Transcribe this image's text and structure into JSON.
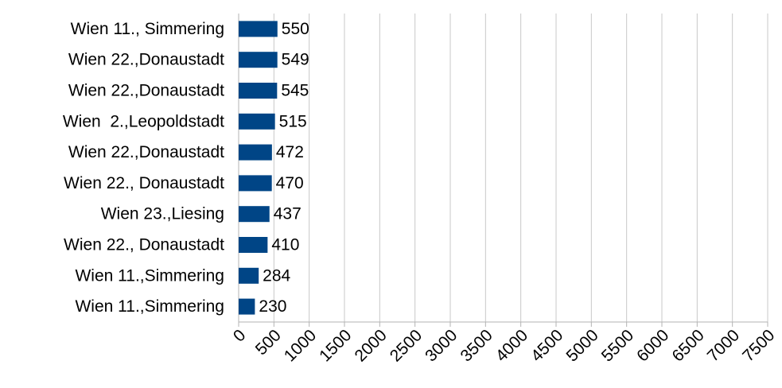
{
  "chart_data": {
    "type": "bar",
    "orientation": "horizontal",
    "categories": [
      "Wien 11., Simmering",
      "Wien 22.,Donaustadt",
      "Wien 22.,Donaustadt",
      "Wien  2.,Leopoldstadt",
      "Wien 22.,Donaustadt",
      "Wien 22., Donaustadt",
      "Wien 23.,Liesing",
      "Wien 22., Donaustadt",
      "Wien 11.,Simmering",
      "Wien 11.,Simmering"
    ],
    "values": [
      550,
      549,
      545,
      515,
      472,
      470,
      437,
      410,
      284,
      230
    ],
    "color": "#004586",
    "xlim": [
      0,
      7500
    ],
    "xticks": [
      0,
      500,
      1000,
      1500,
      2000,
      2500,
      3000,
      3500,
      4000,
      4500,
      5000,
      5500,
      6000,
      6500,
      7000,
      7500
    ],
    "grid": true
  }
}
